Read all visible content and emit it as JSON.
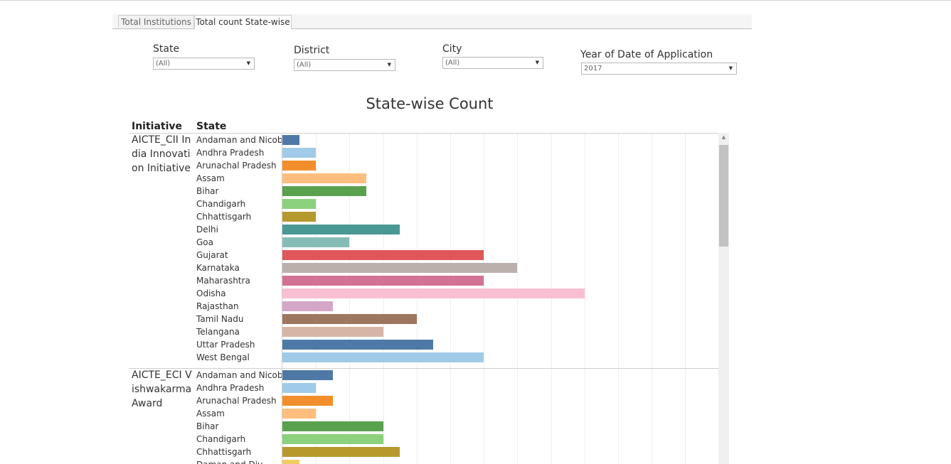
{
  "tabs": [
    {
      "label": "Total Institutions",
      "active": false
    },
    {
      "label": "Total count State-wise",
      "active": true
    }
  ],
  "filters": {
    "state": {
      "label": "State",
      "value": "(All)"
    },
    "district": {
      "label": "District",
      "value": "(All)"
    },
    "city": {
      "label": "City",
      "value": "(All)"
    },
    "year": {
      "label": "Year of Date of Application",
      "value": "2017"
    }
  },
  "chart_data": {
    "type": "bar",
    "orientation": "horizontal",
    "title": "State-wise Count",
    "column_headers": {
      "initiative": "Initiative",
      "state": "State"
    },
    "grid": true,
    "groups": [
      {
        "initiative": "AICTE_CII India Innovation Initiative",
        "categories": [
          "Andaman and Nicobar",
          "Andhra Pradesh",
          "Arunachal Pradesh",
          "Assam",
          "Bihar",
          "Chandigarh",
          "Chhattisgarh",
          "Delhi",
          "Goa",
          "Gujarat",
          "Karnataka",
          "Maharashtra",
          "Odisha",
          "Rajasthan",
          "Tamil Nadu",
          "Telangana",
          "Uttar Pradesh",
          "West Bengal"
        ],
        "values": [
          1,
          2,
          2,
          5,
          5,
          2,
          2,
          7,
          4,
          12,
          14,
          12,
          18,
          3,
          8,
          6,
          9,
          12
        ]
      },
      {
        "initiative": "AICTE_ECI Vishwakarma Award",
        "categories": [
          "Andaman and Nicobar",
          "Andhra Pradesh",
          "Arunachal Pradesh",
          "Assam",
          "Bihar",
          "Chandigarh",
          "Chhattisgarh",
          "Daman and Diu"
        ],
        "values": [
          3,
          2,
          3,
          2,
          6,
          6,
          7,
          1
        ]
      }
    ],
    "colors": {
      "Andaman and Nicobar": "#4e79a7",
      "Andhra Pradesh": "#a0cbe8",
      "Arunachal Pradesh": "#f28e2b",
      "Assam": "#ffbe7d",
      "Bihar": "#59a14f",
      "Chandigarh": "#8cd17d",
      "Chhattisgarh": "#b6992d",
      "Daman and Diu": "#f1ce63",
      "Delhi": "#499894",
      "Goa": "#86bcb6",
      "Gujarat": "#e15759",
      "Karnataka": "#bab0ac",
      "Maharashtra": "#d37295",
      "Odisha": "#fabfd2",
      "Rajasthan": "#d4a6c8",
      "Tamil Nadu": "#9d7660",
      "Telangana": "#d7b5a6",
      "Uttar Pradesh": "#4e79a7",
      "West Bengal": "#a0cbe8"
    }
  }
}
